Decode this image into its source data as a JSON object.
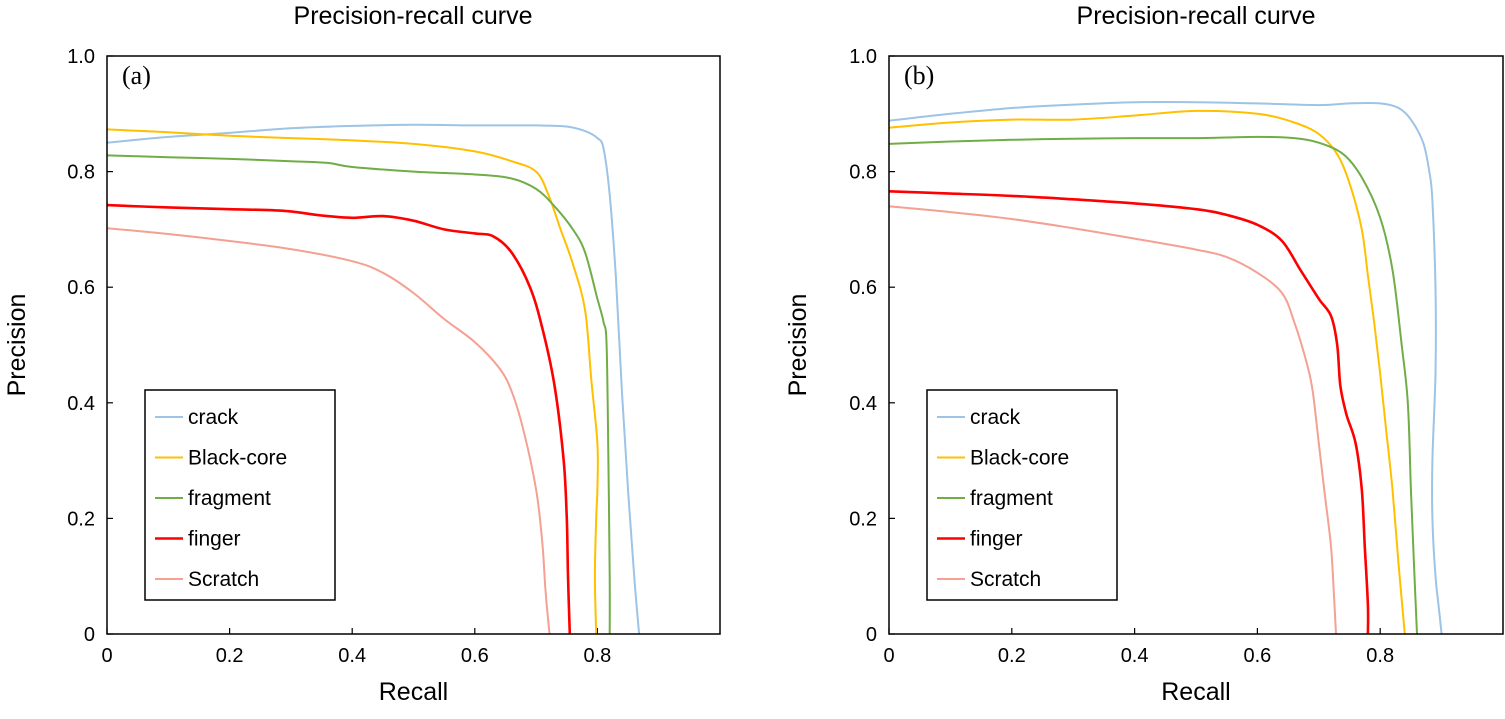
{
  "chart_data": [
    {
      "type": "line",
      "panel_label": "(a)",
      "title": "Precision-recall curve",
      "xlabel": "Recall",
      "ylabel": "Precision",
      "xlim": [
        0,
        1.0
      ],
      "ylim": [
        0,
        1.0
      ],
      "xticks": [
        0,
        0.2,
        0.4,
        0.6,
        0.8
      ],
      "xtick_labels": [
        "0",
        "0.2",
        "0.4",
        "0.6",
        "0.8"
      ],
      "yticks": [
        0,
        0.2,
        0.4,
        0.6,
        0.8,
        1.0
      ],
      "ytick_labels": [
        "0",
        "0.2",
        "0.4",
        "0.6",
        "0.8",
        "1.0"
      ],
      "grid": false,
      "legend_position": "bottom-left",
      "series": [
        {
          "name": "crack",
          "color": "#9dc3e6",
          "x": [
            0.0,
            0.1,
            0.2,
            0.3,
            0.4,
            0.5,
            0.6,
            0.7,
            0.75,
            0.78,
            0.8,
            0.81,
            0.82,
            0.83,
            0.84,
            0.85,
            0.86,
            0.868
          ],
          "y": [
            0.85,
            0.86,
            0.867,
            0.875,
            0.879,
            0.881,
            0.88,
            0.88,
            0.878,
            0.87,
            0.858,
            0.84,
            0.76,
            0.62,
            0.42,
            0.25,
            0.1,
            0.0
          ]
        },
        {
          "name": "Black-core",
          "color": "#ffc000",
          "x": [
            0.0,
            0.1,
            0.2,
            0.3,
            0.4,
            0.5,
            0.6,
            0.66,
            0.7,
            0.72,
            0.74,
            0.76,
            0.78,
            0.79,
            0.8,
            0.8,
            0.798,
            0.796,
            0.798
          ],
          "y": [
            0.873,
            0.868,
            0.862,
            0.858,
            0.854,
            0.848,
            0.835,
            0.818,
            0.8,
            0.76,
            0.7,
            0.64,
            0.56,
            0.44,
            0.33,
            0.25,
            0.2,
            0.1,
            0.0
          ]
        },
        {
          "name": "fragment",
          "color": "#70ad47",
          "x": [
            0.0,
            0.1,
            0.2,
            0.3,
            0.36,
            0.4,
            0.5,
            0.6,
            0.66,
            0.7,
            0.73,
            0.76,
            0.78,
            0.8,
            0.81,
            0.815,
            0.818,
            0.82,
            0.82
          ],
          "y": [
            0.828,
            0.825,
            0.822,
            0.818,
            0.815,
            0.808,
            0.8,
            0.795,
            0.788,
            0.77,
            0.74,
            0.7,
            0.66,
            0.58,
            0.54,
            0.5,
            0.3,
            0.1,
            0.0
          ]
        },
        {
          "name": "finger",
          "color": "#ff0000",
          "x": [
            0.0,
            0.1,
            0.2,
            0.29,
            0.35,
            0.4,
            0.45,
            0.5,
            0.55,
            0.6,
            0.63,
            0.66,
            0.69,
            0.71,
            0.73,
            0.745,
            0.75,
            0.752,
            0.755
          ],
          "y": [
            0.742,
            0.738,
            0.735,
            0.732,
            0.724,
            0.72,
            0.723,
            0.715,
            0.7,
            0.693,
            0.688,
            0.66,
            0.6,
            0.53,
            0.43,
            0.3,
            0.2,
            0.1,
            0.0
          ]
        },
        {
          "name": "Scratch",
          "color": "#f4a093",
          "x": [
            0.0,
            0.1,
            0.2,
            0.3,
            0.4,
            0.45,
            0.5,
            0.55,
            0.6,
            0.64,
            0.66,
            0.68,
            0.7,
            0.71,
            0.715,
            0.72,
            0.722
          ],
          "y": [
            0.702,
            0.692,
            0.68,
            0.666,
            0.645,
            0.625,
            0.59,
            0.545,
            0.505,
            0.46,
            0.42,
            0.35,
            0.25,
            0.16,
            0.08,
            0.02,
            0.0
          ]
        }
      ]
    },
    {
      "type": "line",
      "panel_label": "(b)",
      "title": "Precision-recall curve",
      "xlabel": "Recall",
      "ylabel": "Precision",
      "xlim": [
        0,
        1.0
      ],
      "ylim": [
        0,
        1.0
      ],
      "xticks": [
        0,
        0.2,
        0.4,
        0.6,
        0.8
      ],
      "xtick_labels": [
        "0",
        "0.2",
        "0.4",
        "0.6",
        "0.8"
      ],
      "yticks": [
        0,
        0.2,
        0.4,
        0.6,
        0.8,
        1.0
      ],
      "ytick_labels": [
        "0",
        "0.2",
        "0.4",
        "0.6",
        "0.8",
        "1.0"
      ],
      "grid": false,
      "legend_position": "bottom-left",
      "series": [
        {
          "name": "crack",
          "color": "#9dc3e6",
          "x": [
            0.0,
            0.1,
            0.2,
            0.3,
            0.4,
            0.5,
            0.6,
            0.7,
            0.75,
            0.8,
            0.83,
            0.85,
            0.87,
            0.88,
            0.885,
            0.89,
            0.89,
            0.885,
            0.885,
            0.89,
            0.895,
            0.9
          ],
          "y": [
            0.888,
            0.9,
            0.91,
            0.916,
            0.92,
            0.92,
            0.918,
            0.915,
            0.918,
            0.918,
            0.91,
            0.89,
            0.85,
            0.8,
            0.75,
            0.6,
            0.45,
            0.3,
            0.2,
            0.1,
            0.05,
            0.0
          ]
        },
        {
          "name": "Black-core",
          "color": "#ffc000",
          "x": [
            0.0,
            0.1,
            0.2,
            0.3,
            0.4,
            0.5,
            0.6,
            0.66,
            0.7,
            0.73,
            0.75,
            0.77,
            0.78,
            0.79,
            0.8,
            0.81,
            0.82,
            0.83,
            0.84
          ],
          "y": [
            0.876,
            0.885,
            0.89,
            0.89,
            0.897,
            0.905,
            0.9,
            0.885,
            0.865,
            0.83,
            0.78,
            0.7,
            0.62,
            0.54,
            0.45,
            0.35,
            0.25,
            0.12,
            0.0
          ]
        },
        {
          "name": "fragment",
          "color": "#70ad47",
          "x": [
            0.0,
            0.1,
            0.2,
            0.3,
            0.4,
            0.5,
            0.6,
            0.66,
            0.7,
            0.74,
            0.77,
            0.8,
            0.82,
            0.835,
            0.845,
            0.85,
            0.855,
            0.86
          ],
          "y": [
            0.848,
            0.852,
            0.855,
            0.857,
            0.858,
            0.858,
            0.86,
            0.858,
            0.85,
            0.83,
            0.79,
            0.72,
            0.63,
            0.5,
            0.4,
            0.25,
            0.12,
            0.0
          ]
        },
        {
          "name": "finger",
          "color": "#ff0000",
          "x": [
            0.0,
            0.1,
            0.2,
            0.3,
            0.4,
            0.5,
            0.55,
            0.6,
            0.64,
            0.67,
            0.7,
            0.72,
            0.73,
            0.735,
            0.745,
            0.76,
            0.77,
            0.775,
            0.78,
            0.78
          ],
          "y": [
            0.766,
            0.762,
            0.758,
            0.752,
            0.745,
            0.735,
            0.725,
            0.708,
            0.68,
            0.63,
            0.58,
            0.55,
            0.5,
            0.43,
            0.38,
            0.33,
            0.25,
            0.15,
            0.05,
            0.0
          ]
        },
        {
          "name": "Scratch",
          "color": "#f4a093",
          "x": [
            0.0,
            0.1,
            0.2,
            0.3,
            0.4,
            0.5,
            0.55,
            0.6,
            0.64,
            0.66,
            0.68,
            0.69,
            0.7,
            0.71,
            0.72,
            0.725,
            0.728
          ],
          "y": [
            0.74,
            0.73,
            0.718,
            0.702,
            0.684,
            0.665,
            0.652,
            0.625,
            0.59,
            0.54,
            0.47,
            0.42,
            0.33,
            0.24,
            0.15,
            0.06,
            0.0
          ]
        }
      ]
    }
  ]
}
